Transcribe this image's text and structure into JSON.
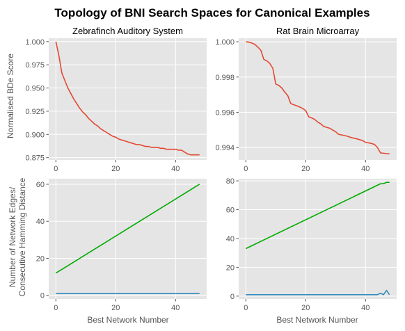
{
  "figure": {
    "title": "Topology of BNI Search Spaces for Canonical Examples",
    "xlabel": "Best Network Number",
    "ylabel_top": "Normalised BDe Score",
    "ylabel_bottom_line1": "Number of Network Edges/",
    "ylabel_bottom_line2": "Consecutive Hamming Distance"
  },
  "colors": {
    "panel_bg": "#e5e5e5",
    "grid": "#ffffff",
    "red": "#e24a33",
    "green": "#00aa00",
    "blue": "#348abd",
    "tick_text": "#555555"
  },
  "chart_data": [
    {
      "type": "line",
      "title": "Zebrafinch Auditory System",
      "xlim": [
        -2.4,
        50.4
      ],
      "ylim": [
        0.8725,
        1.0036
      ],
      "xticks": [
        0,
        20,
        40
      ],
      "yticks": [
        0.875,
        0.9,
        0.925,
        0.95,
        0.975,
        1.0
      ],
      "ytick_labels": [
        "0.875",
        "0.900",
        "0.925",
        "0.950",
        "0.975",
        "1.000"
      ],
      "grid": true,
      "series": [
        {
          "color": "#e24a33",
          "x": [
            0,
            1,
            2,
            3,
            4,
            5,
            6,
            7,
            8,
            9,
            10,
            11,
            12,
            13,
            14,
            15,
            16,
            17,
            18,
            19,
            20,
            21,
            22,
            23,
            24,
            25,
            26,
            27,
            28,
            29,
            30,
            31,
            32,
            33,
            34,
            35,
            36,
            37,
            38,
            39,
            40,
            41,
            42,
            43,
            44,
            45,
            46,
            47,
            48
          ],
          "y": [
            1.0,
            0.985,
            0.966,
            0.958,
            0.95,
            0.944,
            0.938,
            0.933,
            0.928,
            0.924,
            0.921,
            0.917,
            0.914,
            0.911,
            0.909,
            0.906,
            0.904,
            0.902,
            0.9,
            0.898,
            0.897,
            0.895,
            0.894,
            0.893,
            0.892,
            0.891,
            0.89,
            0.889,
            0.889,
            0.888,
            0.887,
            0.887,
            0.886,
            0.886,
            0.886,
            0.885,
            0.885,
            0.884,
            0.884,
            0.884,
            0.884,
            0.883,
            0.883,
            0.881,
            0.879,
            0.878,
            0.878,
            0.878,
            0.878
          ]
        }
      ]
    },
    {
      "type": "line",
      "title": "Rat Brain Microarray",
      "xlim": [
        -2.4,
        50.4
      ],
      "ylim": [
        0.9933,
        1.0002
      ],
      "xticks": [
        0,
        20,
        40
      ],
      "yticks": [
        0.994,
        0.996,
        0.998,
        1.0
      ],
      "ytick_labels": [
        "0.994",
        "0.996",
        "0.998",
        "1.000"
      ],
      "grid": true,
      "series": [
        {
          "color": "#e24a33",
          "x": [
            0,
            1,
            2,
            3,
            4,
            5,
            6,
            7,
            8,
            9,
            10,
            11,
            12,
            13,
            14,
            15,
            16,
            17,
            18,
            19,
            20,
            21,
            22,
            23,
            24,
            25,
            26,
            27,
            28,
            29,
            30,
            31,
            32,
            33,
            34,
            35,
            36,
            37,
            38,
            39,
            40,
            41,
            42,
            43,
            44,
            45,
            46,
            47,
            48
          ],
          "y": [
            1.0,
            0.99998,
            0.99993,
            0.99985,
            0.9997,
            0.99952,
            0.999,
            0.99892,
            0.99877,
            0.9985,
            0.9976,
            0.99753,
            0.99738,
            0.99715,
            0.99695,
            0.9965,
            0.99643,
            0.99637,
            0.9963,
            0.99622,
            0.9961,
            0.99575,
            0.99568,
            0.9956,
            0.99545,
            0.99535,
            0.9952,
            0.99515,
            0.9951,
            0.995,
            0.9949,
            0.99475,
            0.99472,
            0.99468,
            0.99464,
            0.99458,
            0.99454,
            0.9945,
            0.99445,
            0.9944,
            0.9943,
            0.99427,
            0.99423,
            0.99418,
            0.994,
            0.9937,
            0.99368,
            0.99366,
            0.99365
          ]
        }
      ]
    },
    {
      "type": "line",
      "title": "",
      "xlim": [
        -2.4,
        50.4
      ],
      "ylim": [
        -2.0,
        63.0
      ],
      "xticks": [
        0,
        20,
        40
      ],
      "yticks": [
        0,
        20,
        40,
        60
      ],
      "ytick_labels": [
        "0",
        "20",
        "40",
        "60"
      ],
      "grid": true,
      "series": [
        {
          "color": "#00aa00",
          "x": [
            0,
            48
          ],
          "y": [
            12,
            60
          ]
        },
        {
          "color": "#348abd",
          "x": [
            0,
            48
          ],
          "y": [
            1,
            1
          ]
        }
      ]
    },
    {
      "type": "line",
      "title": "",
      "xlim": [
        -2.4,
        50.4
      ],
      "ylim": [
        -2.0,
        81.5
      ],
      "xticks": [
        0,
        20,
        40
      ],
      "yticks": [
        0,
        20,
        40,
        60,
        80
      ],
      "ytick_labels": [
        "0",
        "20",
        "40",
        "60",
        "80"
      ],
      "grid": true,
      "series": [
        {
          "color": "#00aa00",
          "x": [
            0,
            45,
            46,
            47,
            48
          ],
          "y": [
            33,
            78,
            78,
            79,
            79
          ]
        },
        {
          "color": "#348abd",
          "x": [
            0,
            44,
            45,
            46,
            47,
            48
          ],
          "y": [
            1,
            1,
            2,
            1,
            4,
            1
          ]
        }
      ]
    }
  ]
}
